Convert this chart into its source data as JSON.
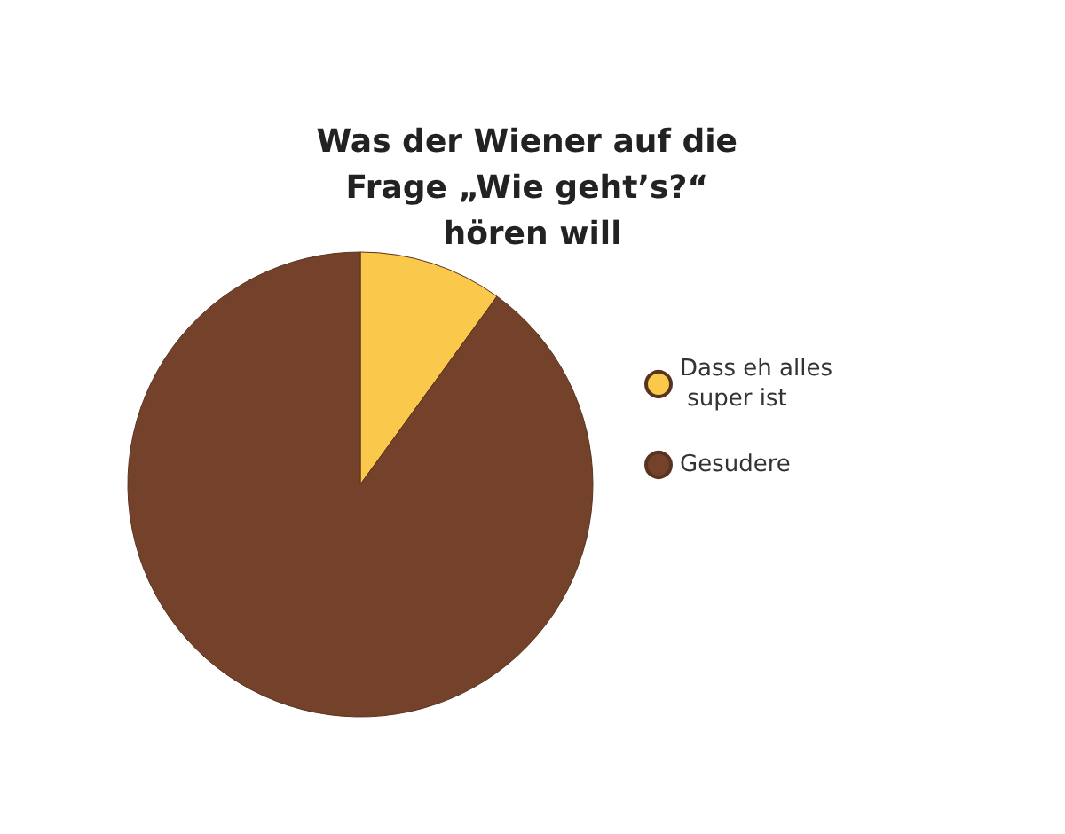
{
  "chart_data": {
    "type": "pie",
    "title": "Was der Wiener auf die Frage „Wie geht’s?“ hören will",
    "categories": [
      "Dass eh alles super ist",
      "Gesudere"
    ],
    "values": [
      10,
      90
    ],
    "colors": [
      "#fac94b",
      "#74422a"
    ],
    "legend": "right"
  }
}
